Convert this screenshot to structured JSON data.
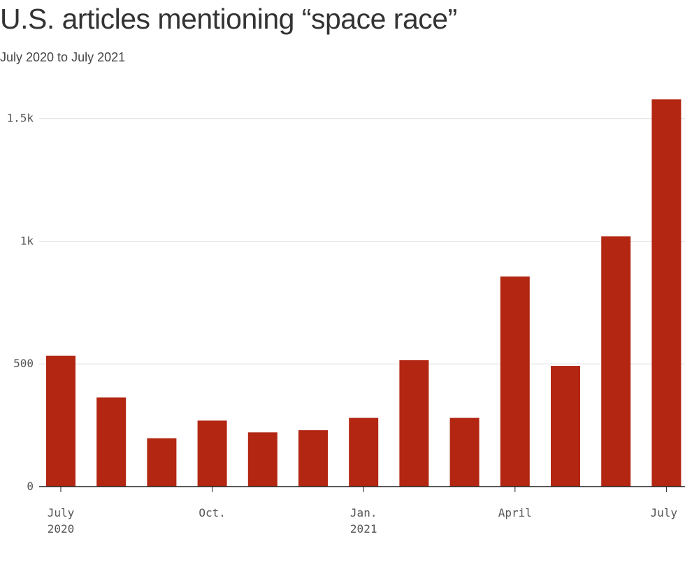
{
  "title": "U.S. articles mentioning “space race”",
  "subtitle": "July 2020 to July 2021",
  "colors": {
    "bar": "#b22612",
    "grid": "#dddddd",
    "axis": "#222222",
    "text": "#555555"
  },
  "chart_data": {
    "type": "bar",
    "title": "U.S. articles mentioning “space race”",
    "subtitle": "July 2020 to July 2021",
    "xlabel": "",
    "ylabel": "",
    "categories": [
      "2020-07",
      "2020-08",
      "2020-09",
      "2020-10",
      "2020-11",
      "2020-12",
      "2021-01",
      "2021-02",
      "2021-03",
      "2021-04",
      "2021-05",
      "2021-06",
      "2021-07"
    ],
    "values": [
      533,
      363,
      197,
      269,
      221,
      230,
      280,
      515,
      280,
      856,
      492,
      1020,
      1578
    ],
    "ylim": [
      0,
      1650
    ],
    "yticks": [
      {
        "value": 0,
        "label": "0"
      },
      {
        "value": 500,
        "label": "500"
      },
      {
        "value": 1000,
        "label": "1k"
      },
      {
        "value": 1500,
        "label": "1.5k"
      }
    ],
    "xticks": [
      {
        "index": 0,
        "line1": "July",
        "line2": "2020"
      },
      {
        "index": 3,
        "line1": "Oct.",
        "line2": ""
      },
      {
        "index": 6,
        "line1": "Jan.",
        "line2": "2021"
      },
      {
        "index": 9,
        "line1": "April",
        "line2": ""
      },
      {
        "index": 12,
        "line1": "July",
        "line2": ""
      }
    ],
    "grid": true,
    "legend": "none"
  }
}
